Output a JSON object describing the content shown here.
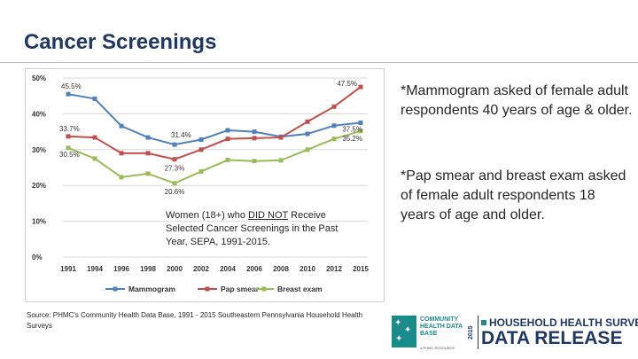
{
  "slide": {
    "title": "Cancer Screenings",
    "note_1": "*Mammogram asked of female adult respondents 40 years of age & older.",
    "note_2": "*Pap smear and breast exam asked of female adult respondents 18 years of age and older.",
    "source": "Source: PHMC's Community Health Data Base, 1991 - 2015 Southeastern Pennsylvania Household Health Surveys"
  },
  "chart_title": {
    "line1_before": "Women (18+) who ",
    "line1_underlined": "DID NOT",
    "line1_after": " Receive",
    "line2": "Selected Cancer Screenings in the Past",
    "line3": "Year, SEPA, 1991-2015."
  },
  "chart_data": {
    "type": "line",
    "title": "Women (18+) who DID NOT Receive Selected Cancer Screenings in the Past Year, SEPA, 1991-2015.",
    "xlabel": "",
    "ylabel": "",
    "ylim": [
      0,
      50
    ],
    "yticks": [
      0,
      10,
      20,
      30,
      40,
      50
    ],
    "ytick_labels": [
      "0%",
      "10%",
      "20%",
      "30%",
      "40%",
      "50%"
    ],
    "categories": [
      "1991",
      "1994",
      "1996",
      "1998",
      "2000",
      "2002",
      "2004",
      "2006",
      "2008",
      "2010",
      "2012",
      "2015"
    ],
    "grid": true,
    "legend_position": "bottom",
    "series": [
      {
        "name": "Mammogram",
        "color": "#4f81bd",
        "marker": "square",
        "values": [
          45.5,
          44.2,
          36.6,
          33.4,
          31.4,
          32.8,
          35.4,
          35.0,
          33.6,
          34.4,
          36.7,
          37.5
        ]
      },
      {
        "name": "Pap smear",
        "color": "#c0504d",
        "marker": "square",
        "values": [
          33.7,
          33.4,
          29.0,
          29.0,
          27.3,
          30.0,
          33.0,
          33.2,
          33.4,
          37.8,
          42.0,
          47.5
        ]
      },
      {
        "name": "Breast exam",
        "color": "#9bbb59",
        "marker": "square",
        "values": [
          30.5,
          27.5,
          22.3,
          23.3,
          20.6,
          23.9,
          27.1,
          26.8,
          27.0,
          30.0,
          33.0,
          35.2
        ]
      }
    ],
    "annotations": [
      {
        "series": 0,
        "index": 0,
        "text": "45.5%"
      },
      {
        "series": 0,
        "index": 4,
        "text": "31.4%"
      },
      {
        "series": 0,
        "index": 11,
        "text": "37.5%"
      },
      {
        "series": 1,
        "index": 0,
        "text": "33.7%"
      },
      {
        "series": 1,
        "index": 4,
        "text": "27.3%"
      },
      {
        "series": 1,
        "index": 11,
        "text": "47.5%"
      },
      {
        "series": 2,
        "index": 0,
        "text": "30.5%"
      },
      {
        "series": 2,
        "index": 4,
        "text": "20.6%"
      },
      {
        "series": 2,
        "index": 11,
        "text": "35.2%"
      }
    ]
  },
  "logo": {
    "brand": "COMMUNITY HEALTH DATA BASE",
    "sub": "A PHMC RESOURCE",
    "year": "2015",
    "line1": "HOUSEHOLD HEALTH SURVEY",
    "line2": "DATA RELEASE"
  }
}
